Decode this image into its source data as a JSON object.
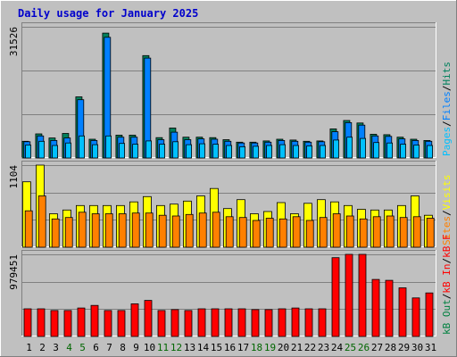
{
  "title": "Daily usage for January 2025",
  "colors": {
    "background": "#c0c0c0",
    "frame_dark": "#808080",
    "frame_light": "#ffffff",
    "title": "#0000cc",
    "hits": "#00805c",
    "files": "#0080ff",
    "pages": "#00c0ff",
    "visits": "#ffff00",
    "sites": "#ff8000",
    "kb_f": "#ff0000",
    "kb_in": "#ff0000",
    "kb_out": "#008040",
    "weekend_label": "#006600",
    "weekday_label": "#000000"
  },
  "chart_data": [
    {
      "type": "bar",
      "title": "Daily usage for January 2025",
      "categories": [
        "1",
        "2",
        "3",
        "4",
        "5",
        "6",
        "7",
        "8",
        "9",
        "10",
        "11",
        "12",
        "13",
        "14",
        "15",
        "16",
        "17",
        "18",
        "19",
        "20",
        "21",
        "22",
        "23",
        "24",
        "25",
        "26",
        "27",
        "28",
        "29",
        "30",
        "31"
      ],
      "weekend_days": [
        "4",
        "5",
        "11",
        "12",
        "18",
        "19",
        "25",
        "26"
      ],
      "ymax_label": "31526",
      "ylim": [
        0,
        31526
      ],
      "legend_right": [
        {
          "text": "Hits",
          "color_key": "hits"
        },
        {
          "text": "/",
          "color_key": "sep"
        },
        {
          "text": "Files",
          "color_key": "files"
        },
        {
          "text": "/",
          "color_key": "sep"
        },
        {
          "text": "Pages",
          "color_key": "pages"
        }
      ],
      "series": [
        {
          "name": "Hits",
          "values": [
            4000,
            5800,
            4800,
            5900,
            14700,
            4500,
            30000,
            5500,
            5500,
            24600,
            4900,
            7200,
            5000,
            5000,
            4900,
            4400,
            3800,
            3800,
            4100,
            4500,
            4300,
            4000,
            4100,
            7000,
            9000,
            8400,
            5700,
            5600,
            5000,
            4500,
            4200
          ]
        },
        {
          "name": "Files",
          "values": [
            3900,
            5300,
            4200,
            4800,
            14000,
            4200,
            29000,
            5000,
            5000,
            24000,
            4400,
            6200,
            4400,
            4600,
            4500,
            4000,
            3600,
            3600,
            3800,
            4200,
            4000,
            3800,
            3900,
            6300,
            8500,
            7900,
            5300,
            5200,
            4600,
            4200,
            4000
          ]
        },
        {
          "name": "Pages",
          "values": [
            3100,
            4000,
            3000,
            3600,
            5300,
            3200,
            5300,
            3500,
            3300,
            4100,
            3300,
            3900,
            3200,
            3400,
            3300,
            3000,
            2700,
            2800,
            3000,
            3200,
            3000,
            2900,
            3000,
            4300,
            5000,
            4700,
            3700,
            3600,
            3300,
            3100,
            3000
          ]
        }
      ]
    },
    {
      "type": "bar",
      "ymax_label": "1104",
      "ylim": [
        0,
        1104
      ],
      "legend_right": [
        {
          "text": "Visits",
          "color_key": "visits"
        },
        {
          "text": "/",
          "color_key": "sep"
        },
        {
          "text": "Sites",
          "color_key": "sites"
        }
      ],
      "series": [
        {
          "name": "Visits",
          "values": [
            880,
            1104,
            450,
            500,
            560,
            560,
            560,
            560,
            610,
            680,
            560,
            580,
            620,
            690,
            790,
            520,
            640,
            450,
            480,
            600,
            450,
            590,
            640,
            610,
            560,
            510,
            500,
            500,
            560,
            690,
            430
          ]
        },
        {
          "name": "Sites",
          "values": [
            490,
            690,
            380,
            400,
            470,
            450,
            450,
            450,
            460,
            460,
            430,
            420,
            440,
            460,
            470,
            410,
            400,
            360,
            390,
            380,
            410,
            360,
            400,
            450,
            420,
            380,
            410,
            420,
            400,
            410,
            390
          ]
        }
      ]
    },
    {
      "type": "bar",
      "ymax_label": "979451",
      "ylim": [
        0,
        979451
      ],
      "legend_right": [
        {
          "text": "kB F",
          "color_key": "kb_f"
        },
        {
          "text": "/",
          "color_key": "sep"
        },
        {
          "text": "kB In",
          "color_key": "kb_in"
        },
        {
          "text": "/",
          "color_key": "sep"
        },
        {
          "text": "kB Out",
          "color_key": "kb_out"
        }
      ],
      "series": [
        {
          "name": "kB F",
          "values": [
            330000,
            330000,
            310000,
            310000,
            340000,
            370000,
            310000,
            310000,
            390000,
            430000,
            310000,
            320000,
            310000,
            330000,
            330000,
            330000,
            330000,
            320000,
            320000,
            330000,
            340000,
            330000,
            330000,
            940000,
            979451,
            979451,
            680000,
            670000,
            580000,
            460000,
            520000
          ]
        }
      ]
    }
  ]
}
